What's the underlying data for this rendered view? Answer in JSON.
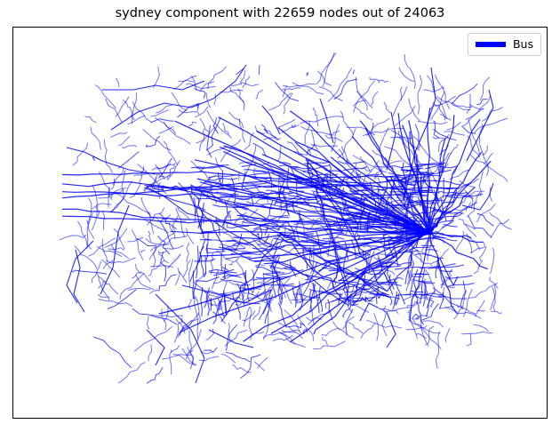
{
  "figure": {
    "title": "sydney component with 22659 nodes out of 24063"
  },
  "legend": {
    "items": [
      {
        "label": "Bus",
        "color": "#0000ff"
      }
    ]
  },
  "map": {
    "network": "sydney",
    "mode": "Bus",
    "edge_color": "#0000ff",
    "component_nodes": 22659,
    "total_nodes": 24063,
    "axes_visible": false
  }
}
